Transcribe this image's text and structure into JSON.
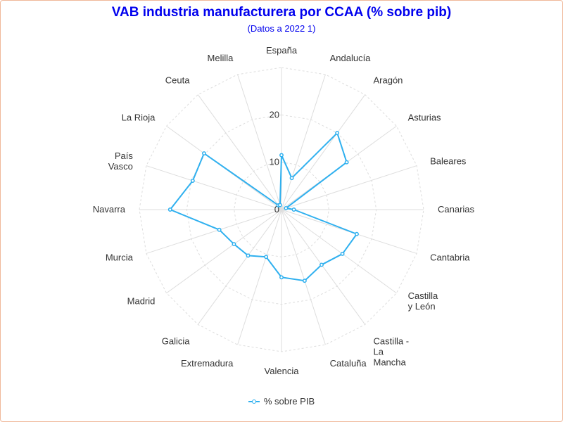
{
  "header": {
    "title": "VAB industria manufacturera por CCAA (% sobre pib)",
    "subtitle": "(Datos a 2022 1)"
  },
  "legend": {
    "label": "% sobre PIB",
    "icon": "line-marker-icon"
  },
  "colors": {
    "series": "#2fb0ef",
    "title": "#0000ee",
    "grid": "#dddddd"
  },
  "chart_data": {
    "type": "radar",
    "title": "VAB industria manufacturera por CCAA (% sobre pib)",
    "subtitle": "(Datos a 2022 1)",
    "categories": [
      "España",
      "Andalucía",
      "Aragón",
      "Asturias",
      "Baleares",
      "Canarias",
      "Cantabria",
      "Castilla y León",
      "Castilla - La Mancha",
      "Cataluña",
      "Valencia",
      "Extremadura",
      "Galicia",
      "Madrid",
      "Murcia",
      "Navarra",
      "País Vasco",
      "La Rioja",
      "Ceuta",
      "Melilla"
    ],
    "category_lines": [
      [
        "España"
      ],
      [
        "Andalucía"
      ],
      [
        "Aragón"
      ],
      [
        "Asturias"
      ],
      [
        "Baleares"
      ],
      [
        "Canarias"
      ],
      [
        "Cantabria"
      ],
      [
        "Castilla",
        "y León"
      ],
      [
        "Castilla -",
        "La",
        "Mancha"
      ],
      [
        "Cataluña"
      ],
      [
        "Valencia"
      ],
      [
        "Extremadura"
      ],
      [
        "Galicia"
      ],
      [
        "Madrid"
      ],
      [
        "Murcia"
      ],
      [
        "Navarra"
      ],
      [
        "País",
        "Vasco"
      ],
      [
        "La Rioja"
      ],
      [
        "Ceuta"
      ],
      [
        "Melilla"
      ]
    ],
    "series": [
      {
        "name": "% sobre PIB",
        "values": [
          11.5,
          7.0,
          20.0,
          17.0,
          1.0,
          2.6,
          16.7,
          15.9,
          14.4,
          15.8,
          14.3,
          10.5,
          12.0,
          12.4,
          13.8,
          23.5,
          19.7,
          20.2,
          1.1,
          1.0
        ]
      }
    ],
    "r_ticks": [
      0,
      10,
      20
    ],
    "rlim": [
      0,
      30
    ],
    "grid": true,
    "legend_position": "bottom"
  }
}
